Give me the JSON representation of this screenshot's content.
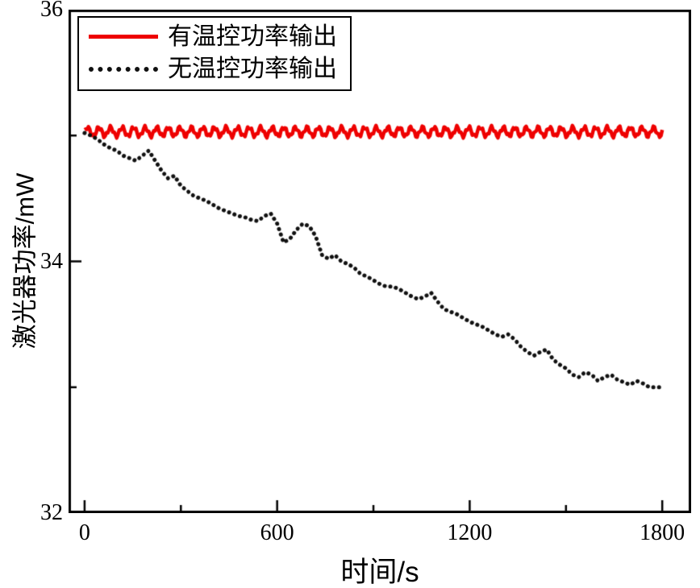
{
  "figure": {
    "background": "#ffffff",
    "frame_color": "#000000"
  },
  "chart_data": {
    "type": "line",
    "title": "",
    "xlabel": "时间/s",
    "ylabel": "激光器功率/mW",
    "xlim": [
      -50,
      1890
    ],
    "ylim": [
      32,
      36
    ],
    "x_ticks": [
      0,
      600,
      1200,
      1800
    ],
    "x_tick_labels": [
      "0",
      "600",
      "1200",
      "1800"
    ],
    "x_minor_ticks": [
      300,
      900,
      1500
    ],
    "y_ticks": [
      32,
      34,
      36
    ],
    "y_tick_labels": [
      "32",
      "34",
      "36"
    ],
    "y_minor_ticks": [
      33,
      35
    ],
    "grid": false,
    "legend": {
      "position": "top-left",
      "border": true
    },
    "series": [
      {
        "name": "有温控功率输出",
        "color": "#ee0000",
        "style": "solid",
        "line_width": 4.5,
        "model": {
          "kind": "oscillation",
          "base": 35.03,
          "amplitude": 0.035,
          "period_s": 36,
          "t_start": 0,
          "t_end": 1800,
          "t_step": 4
        }
      },
      {
        "name": "无温控功率输出",
        "color": "#111111",
        "style": "dotted",
        "line_width": 5,
        "t0": 0,
        "dt": 20,
        "values": [
          35.02,
          35.0,
          34.97,
          34.93,
          34.9,
          34.88,
          34.84,
          34.82,
          34.8,
          34.84,
          34.88,
          34.8,
          34.72,
          34.66,
          34.68,
          34.6,
          34.56,
          34.52,
          34.5,
          34.48,
          34.45,
          34.42,
          34.4,
          34.38,
          34.36,
          34.35,
          34.33,
          34.32,
          34.36,
          34.38,
          34.3,
          34.15,
          34.18,
          34.25,
          34.3,
          34.28,
          34.2,
          34.05,
          34.02,
          34.05,
          34.0,
          33.98,
          33.95,
          33.9,
          33.88,
          33.85,
          33.82,
          33.8,
          33.8,
          33.78,
          33.75,
          33.72,
          33.7,
          33.72,
          33.75,
          33.68,
          33.62,
          33.6,
          33.58,
          33.55,
          33.52,
          33.5,
          33.48,
          33.45,
          33.42,
          33.4,
          33.42,
          33.38,
          33.32,
          33.28,
          33.25,
          33.28,
          33.3,
          33.22,
          33.18,
          33.15,
          33.1,
          33.08,
          33.12,
          33.1,
          33.05,
          33.08,
          33.1,
          33.06,
          33.04,
          33.02,
          33.05,
          33.03,
          33.0,
          33.0,
          33.0
        ]
      }
    ]
  }
}
